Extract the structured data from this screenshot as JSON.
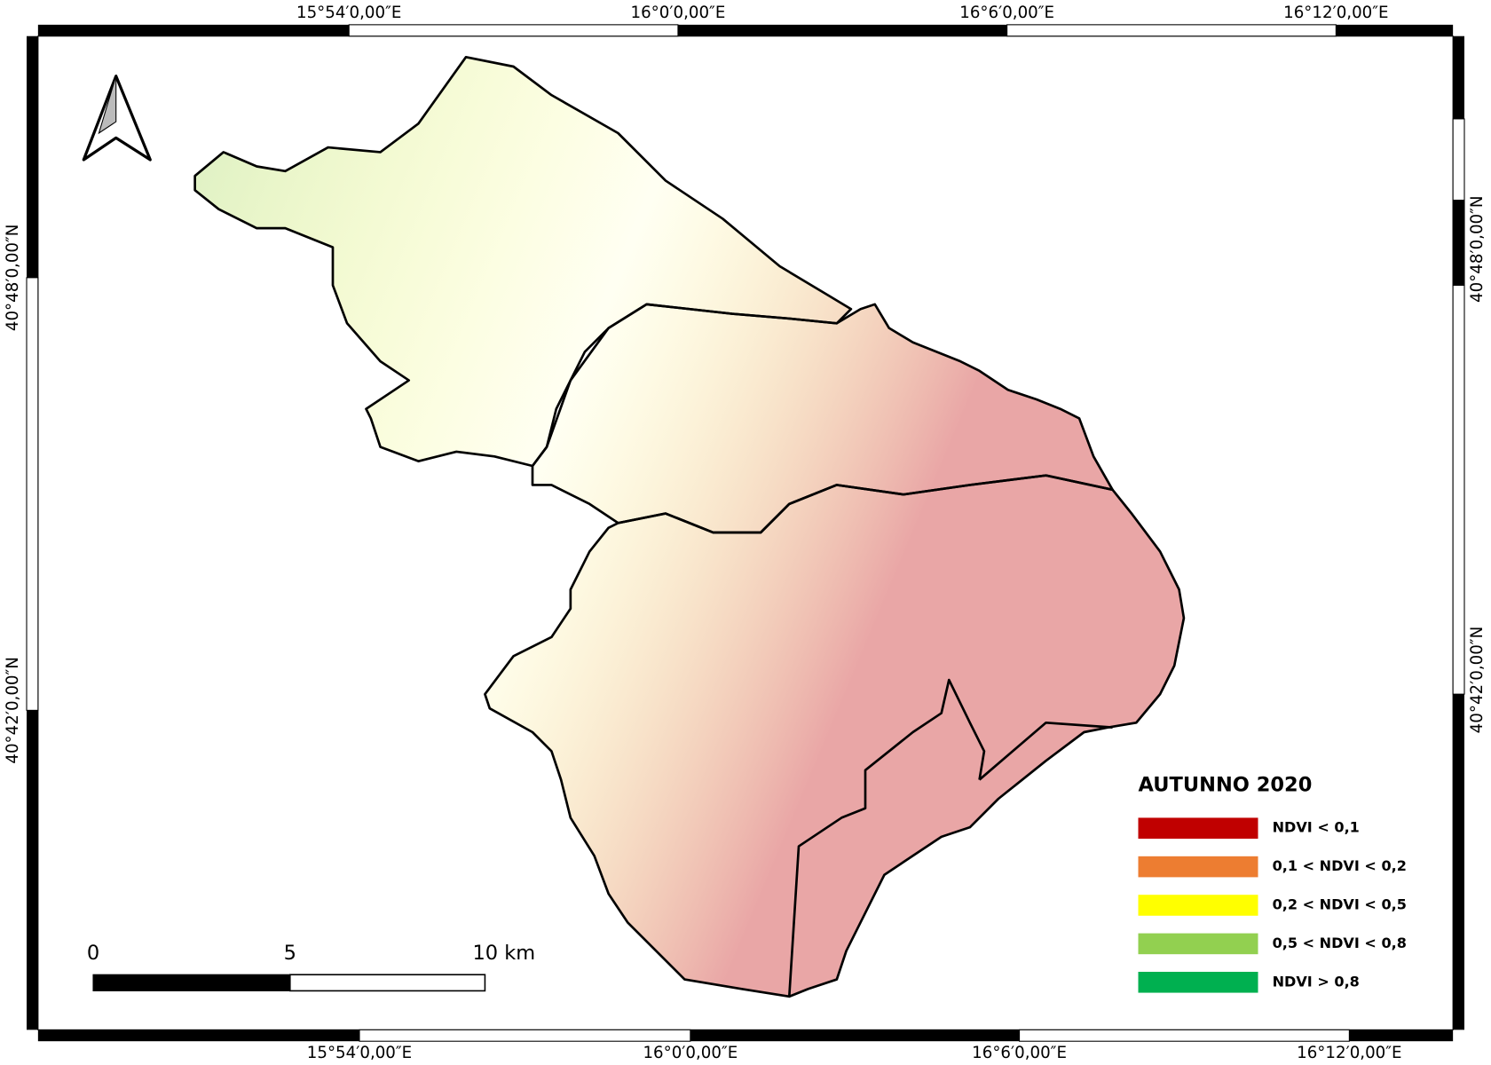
{
  "map": {
    "top_labels": [
      "15°54′0,00″E",
      "16°0′0,00″E",
      "16°6′0,00″E",
      "16°12′0,00″E"
    ],
    "bottom_labels": [
      "15°54′0,00″E",
      "16°0′0,00″E",
      "16°6′0,00″E",
      "16°12′0,00″E"
    ],
    "left_labels": [
      "40°48′0,00″N",
      "40°42′0,00″N"
    ],
    "right_labels": [
      "40°48′0,00″N",
      "40°42′0,00″N"
    ],
    "legend": {
      "title": "AUTUNNO 2020",
      "items": [
        {
          "label": "NDVI < 0,1",
          "color": "#c00000"
        },
        {
          "label": "0,1 < NDVI < 0,2",
          "color": "#ed7d31"
        },
        {
          "label": "0,2 < NDVI < 0,5",
          "color": "#ffff00"
        },
        {
          "label": "0,5 < NDVI < 0,8",
          "color": "#92d050"
        },
        {
          "label": "NDVI > 0,8",
          "color": "#00b050"
        }
      ]
    },
    "scale_bar": {
      "labels": [
        "0",
        "5",
        "10 km"
      ]
    }
  }
}
